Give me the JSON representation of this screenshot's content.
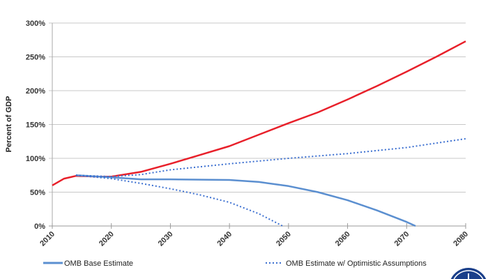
{
  "chart_data": {
    "type": "line",
    "title": "",
    "xlabel": "",
    "ylabel": "Percent of GDP",
    "xlim": [
      2010,
      2080
    ],
    "ylim": [
      0,
      300
    ],
    "x_ticks": [
      "2010",
      "2020",
      "2030",
      "2040",
      "2050",
      "2060",
      "2070",
      "2080"
    ],
    "y_ticks": [
      "0%",
      "50%",
      "100%",
      "150%",
      "200%",
      "250%",
      "300%"
    ],
    "grid": "horizontal",
    "legend_position": "bottom",
    "series": [
      {
        "color": "#e8202a",
        "style": "solid",
        "points": [
          [
            2010,
            60
          ],
          [
            2012,
            70
          ],
          [
            2014,
            74
          ],
          [
            2018,
            73
          ],
          [
            2020,
            73
          ],
          [
            2025,
            80
          ],
          [
            2030,
            92
          ],
          [
            2035,
            105
          ],
          [
            2040,
            118
          ],
          [
            2045,
            135
          ],
          [
            2050,
            152
          ],
          [
            2055,
            168
          ],
          [
            2060,
            187
          ],
          [
            2065,
            207
          ],
          [
            2070,
            228
          ],
          [
            2075,
            250
          ],
          [
            2080,
            273
          ]
        ]
      },
      {
        "name": "OMB Base Estimate",
        "color": "#5b8fd0",
        "style": "solid",
        "points": [
          [
            2014,
            75
          ],
          [
            2020,
            72
          ],
          [
            2025,
            69
          ],
          [
            2030,
            69
          ],
          [
            2040,
            68
          ],
          [
            2045,
            65
          ],
          [
            2050,
            59
          ],
          [
            2055,
            50
          ],
          [
            2060,
            38
          ],
          [
            2065,
            23
          ],
          [
            2070,
            6
          ],
          [
            2071.5,
            0
          ]
        ]
      },
      {
        "name": "OMB Estimate w/ Optimistic Assumptions",
        "color": "#3b6fd0",
        "style": "dotted",
        "points": [
          [
            2014,
            75
          ],
          [
            2020,
            73
          ],
          [
            2025,
            76
          ],
          [
            2030,
            83
          ],
          [
            2040,
            92
          ],
          [
            2050,
            100
          ],
          [
            2060,
            107
          ],
          [
            2070,
            116
          ],
          [
            2080,
            129
          ]
        ]
      },
      {
        "color": "#3b6fd0",
        "style": "dotted",
        "points": [
          [
            2014,
            75
          ],
          [
            2020,
            70
          ],
          [
            2025,
            63
          ],
          [
            2030,
            55
          ],
          [
            2035,
            46
          ],
          [
            2040,
            35
          ],
          [
            2045,
            18
          ],
          [
            2049,
            0
          ]
        ]
      }
    ]
  }
}
